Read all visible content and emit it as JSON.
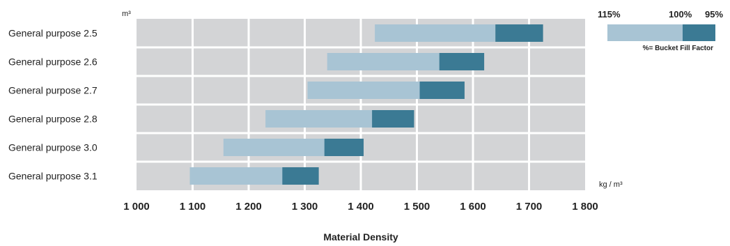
{
  "chart_data": {
    "type": "bar",
    "orientation": "horizontal",
    "title": "",
    "xlabel": "Material Density",
    "x_unit": "kg / m³",
    "y_unit": "m³",
    "xlim": [
      1000,
      1800
    ],
    "x_ticks": [
      1000,
      1100,
      1200,
      1300,
      1400,
      1500,
      1600,
      1700,
      1800
    ],
    "x_tick_labels": [
      "1 000",
      "1 100",
      "1 200",
      "1 300",
      "1 400",
      "1 500",
      "1 600",
      "1 700",
      "1 800"
    ],
    "categories": [
      "General purpose 2.5",
      "General purpose 2.6",
      "General purpose 2.7",
      "General purpose 2.8",
      "General purpose 3.0",
      "General purpose 3.1"
    ],
    "series": [
      {
        "name": "115% – 100%",
        "color": "#a8c4d4",
        "ranges": [
          [
            1425,
            1640
          ],
          [
            1340,
            1540
          ],
          [
            1305,
            1505
          ],
          [
            1230,
            1420
          ],
          [
            1155,
            1335
          ],
          [
            1095,
            1260
          ]
        ]
      },
      {
        "name": "100% – 95%",
        "color": "#3b7a94",
        "ranges": [
          [
            1640,
            1725
          ],
          [
            1540,
            1620
          ],
          [
            1505,
            1585
          ],
          [
            1420,
            1495
          ],
          [
            1335,
            1405
          ],
          [
            1260,
            1325
          ]
        ]
      }
    ],
    "legend": {
      "position": "top-right",
      "labels": [
        "115%",
        "100%",
        "95%"
      ],
      "caption": "%= Bucket Fill Factor"
    },
    "grid": true,
    "colors": {
      "plot_bg": "#d3d4d6",
      "grid": "#ffffff",
      "light": "#a8c4d4",
      "dark": "#3b7a94"
    }
  }
}
